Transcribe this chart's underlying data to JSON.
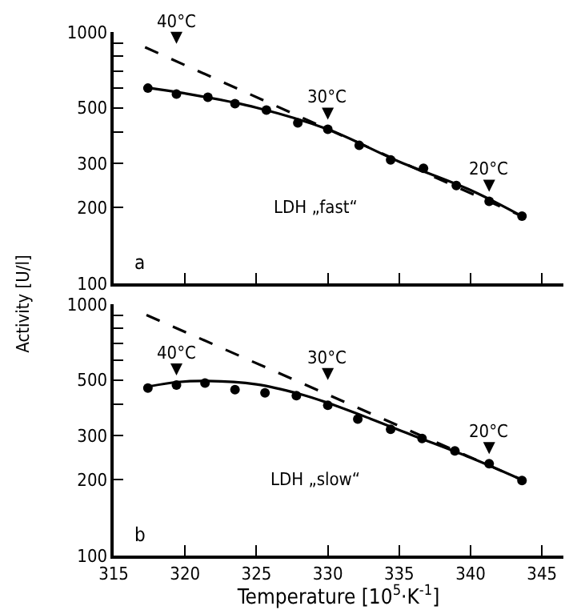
{
  "chart_data": [
    {
      "type": "scatter",
      "ylabel": "Activity [U/l]",
      "log": "y",
      "grid": false,
      "tick_labels": "y",
      "xlim": [
        315,
        346.5
      ],
      "ylim": [
        100,
        1000
      ],
      "xticks": [
        {
          "value": 315,
          "label": null
        },
        {
          "value": 320,
          "label": null
        },
        {
          "value": 325,
          "label": null
        },
        {
          "value": 330,
          "label": null
        },
        {
          "value": 335,
          "label": null
        },
        {
          "value": 340,
          "label": null
        },
        {
          "value": 345,
          "label": null
        }
      ],
      "yticks": [
        100,
        200,
        300,
        {
          "value": 400,
          "label": null
        },
        500,
        {
          "value": 600,
          "label": null
        },
        {
          "value": 700,
          "label": null
        },
        {
          "value": 800,
          "label": null
        },
        {
          "value": 900,
          "label": null
        },
        1000
      ],
      "series": [
        {
          "type": "scatter",
          "marker": "circle",
          "color": "#000000",
          "x": [
            317.4,
            319.4,
            321.6,
            323.5,
            325.7,
            327.9,
            330.0,
            332.2,
            334.4,
            336.7,
            339.0,
            341.3,
            343.6
          ],
          "values": [
            598,
            566,
            550,
            519,
            489,
            435,
            410,
            354,
            310,
            287,
            245,
            212,
            185
          ]
        },
        {
          "type": "line",
          "marker": "none",
          "line_style": "solid",
          "color": "#000000",
          "x": [
            317.4,
            320,
            325,
            330,
            335,
            340,
            343.6
          ],
          "values": [
            600,
            570,
            500,
            410,
            305,
            235,
            185
          ]
        },
        {
          "type": "line",
          "marker": "none",
          "line_style": "dashed",
          "color": "#000000",
          "x": [
            317.2,
            343.6
          ],
          "values": [
            870,
            185
          ]
        }
      ],
      "annotations": [
        {
          "text": "40°C",
          "x": 319.4,
          "y": 822
        },
        {
          "text": "30°C",
          "x": 330,
          "y": 410
        },
        {
          "text": "20°C",
          "x": 341.3,
          "y": 212
        },
        "LDH „fast“",
        "a"
      ]
    },
    {
      "type": "scatter",
      "xlabel": "Temperature [10$^{5}$·K$^{-1}$]",
      "log": "y",
      "grid": false,
      "xlim": [
        315,
        346.5
      ],
      "ylim": [
        100,
        1000
      ],
      "xticks": [
        315,
        320,
        325,
        330,
        335,
        340,
        345
      ],
      "yticks": [
        100,
        200,
        300,
        {
          "value": 400,
          "label": null
        },
        500,
        {
          "value": 600,
          "label": null
        },
        {
          "value": 700,
          "label": null
        },
        {
          "value": 800,
          "label": null
        },
        {
          "value": 900,
          "label": null
        },
        1000
      ],
      "series": [
        {
          "type": "scatter",
          "marker": "circle",
          "color": "#000000",
          "x": [
            317.4,
            319.4,
            321.4,
            323.5,
            325.6,
            327.8,
            330.0,
            332.1,
            334.4,
            336.6,
            338.9,
            341.3,
            343.6
          ],
          "values": [
            464,
            477,
            486,
            457,
            444,
            433,
            396,
            349,
            318,
            292,
            261,
            232,
            199
          ]
        },
        {
          "type": "line",
          "marker": "none",
          "line_style": "solid",
          "color": "#000000",
          "x": [
            317.4,
            319.5,
            321.5,
            325,
            328,
            330,
            333,
            336,
            340,
            343.6
          ],
          "values": [
            470,
            490,
            495,
            480,
            440,
            405,
            350,
            300,
            245,
            200
          ]
        },
        {
          "type": "line",
          "marker": "none",
          "line_style": "dashed",
          "color": "#000000",
          "x": [
            317.3,
            343.6
          ],
          "values": [
            906,
            200
          ]
        }
      ],
      "annotations": [
        {
          "text": "40°C",
          "x": 319.4,
          "y": 477
        },
        {
          "text": "30°C",
          "x": 330,
          "y": 457
        },
        {
          "text": "20°C",
          "x": 341.3,
          "y": 232
        },
        "LDH „slow“",
        "b"
      ]
    }
  ]
}
